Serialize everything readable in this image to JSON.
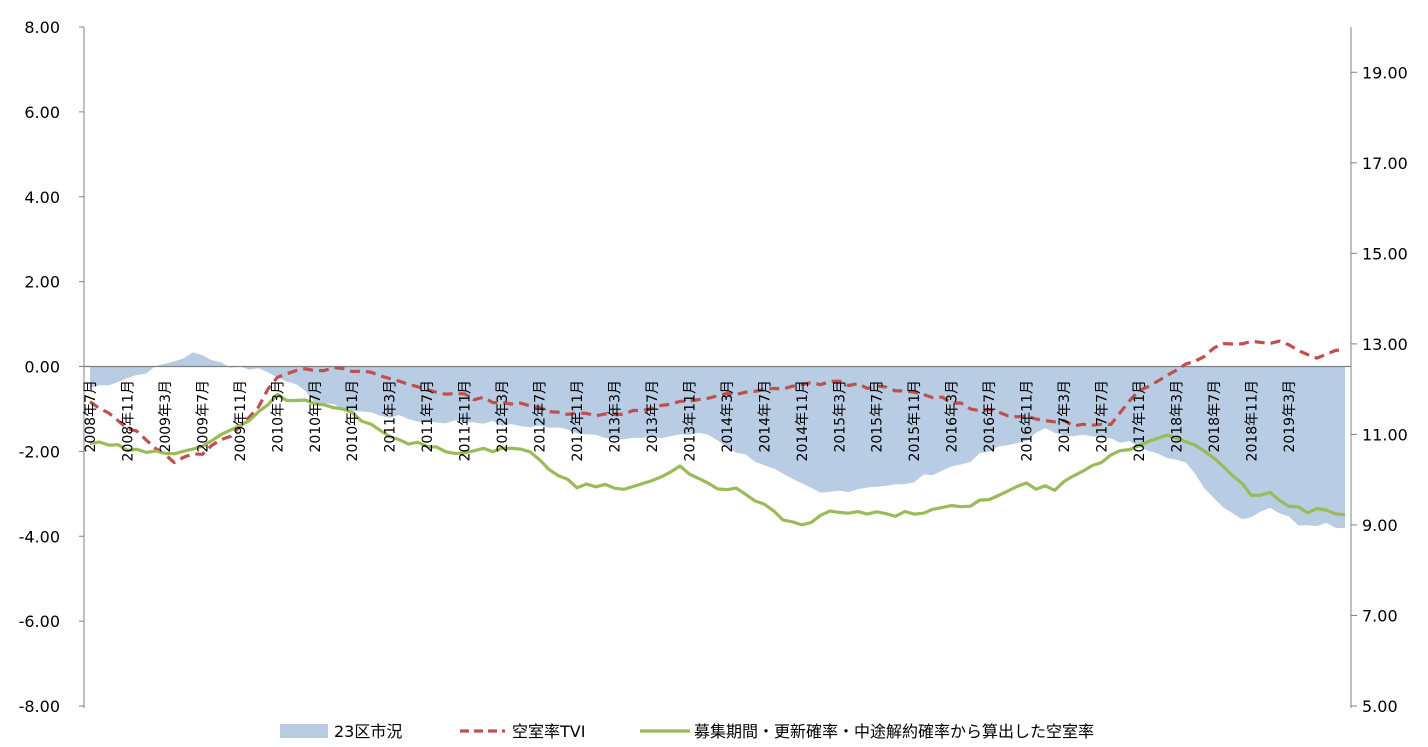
{
  "chart_data": {
    "type": "line",
    "title": "",
    "xlabel": "",
    "ylabel_left": "",
    "ylabel_right": "",
    "y_left_range": [
      -8,
      8
    ],
    "y_left_ticks": [
      "8.00",
      "6.00",
      "4.00",
      "2.00",
      "0.00",
      "-2.00",
      "-4.00",
      "-6.00",
      "-8.00"
    ],
    "y_right_range": [
      5,
      20
    ],
    "y_right_ticks": [
      "19.00",
      "17.00",
      "15.00",
      "13.00",
      "11.00",
      "9.00",
      "7.00",
      "5.00"
    ],
    "x_start": "2008年7月",
    "x_tick_labels": [
      "2008年7月",
      "2008年11月",
      "2009年3月",
      "2009年7月",
      "2009年11月",
      "2010年3月",
      "2010年7月",
      "2010年11月",
      "2011年3月",
      "2011年7月",
      "2011年11月",
      "2012年3月",
      "2012年7月",
      "2012年11月",
      "2013年3月",
      "2013年7月",
      "2013年11月",
      "2014年3月",
      "2014年7月",
      "2014年11月",
      "2015年3月",
      "2015年7月",
      "2015年11月",
      "2016年3月",
      "2016年7月",
      "2016年11月",
      "2017年3月",
      "2017年7月",
      "2017年11月",
      "2018年3月",
      "2018年7月",
      "2018年11月",
      "2019年3月"
    ],
    "grid": false,
    "legend_position": "bottom",
    "series": [
      {
        "name": "23区市況",
        "type": "area",
        "axis": "left",
        "color": "#b8cce4",
        "knots": [
          [
            0,
            -0.5
          ],
          [
            2,
            -0.4
          ],
          [
            5,
            -0.2
          ],
          [
            8,
            0.05
          ],
          [
            11,
            0.3
          ],
          [
            13,
            0.2
          ],
          [
            15,
            0.0
          ],
          [
            18,
            -0.05
          ],
          [
            21,
            -0.3
          ],
          [
            24,
            -0.8
          ],
          [
            27,
            -1.0
          ],
          [
            30,
            -1.1
          ],
          [
            33,
            -1.2
          ],
          [
            36,
            -1.3
          ],
          [
            39,
            -1.3
          ],
          [
            42,
            -1.3
          ],
          [
            45,
            -1.4
          ],
          [
            48,
            -1.4
          ],
          [
            51,
            -1.5
          ],
          [
            54,
            -1.6
          ],
          [
            57,
            -1.7
          ],
          [
            60,
            -1.7
          ],
          [
            63,
            -1.6
          ],
          [
            66,
            -1.6
          ],
          [
            69,
            -2.0
          ],
          [
            72,
            -2.3
          ],
          [
            75,
            -2.7
          ],
          [
            78,
            -3.0
          ],
          [
            81,
            -2.9
          ],
          [
            84,
            -2.8
          ],
          [
            87,
            -2.8
          ],
          [
            90,
            -2.5
          ],
          [
            93,
            -2.3
          ],
          [
            96,
            -2.0
          ],
          [
            99,
            -1.8
          ],
          [
            102,
            -1.5
          ],
          [
            105,
            -1.6
          ],
          [
            108,
            -1.7
          ],
          [
            111,
            -1.8
          ],
          [
            114,
            -2.0
          ],
          [
            117,
            -2.3
          ],
          [
            120,
            -3.1
          ],
          [
            123,
            -3.6
          ],
          [
            126,
            -3.3
          ],
          [
            129,
            -3.7
          ],
          [
            132,
            -3.7
          ],
          [
            134,
            -3.8
          ]
        ]
      },
      {
        "name": "空室率TVI",
        "type": "line",
        "axis": "right",
        "color": "#c0504d",
        "dash": "dashed",
        "knots": [
          [
            0,
            11.7
          ],
          [
            3,
            11.3
          ],
          [
            6,
            10.9
          ],
          [
            9,
            10.4
          ],
          [
            12,
            10.6
          ],
          [
            15,
            11.0
          ],
          [
            18,
            11.6
          ],
          [
            20,
            12.3
          ],
          [
            22,
            12.45
          ],
          [
            25,
            12.45
          ],
          [
            28,
            12.4
          ],
          [
            31,
            12.3
          ],
          [
            34,
            12.1
          ],
          [
            37,
            11.95
          ],
          [
            40,
            11.85
          ],
          [
            43,
            11.75
          ],
          [
            46,
            11.65
          ],
          [
            49,
            11.55
          ],
          [
            52,
            11.45
          ],
          [
            55,
            11.45
          ],
          [
            58,
            11.5
          ],
          [
            61,
            11.6
          ],
          [
            64,
            11.75
          ],
          [
            67,
            11.85
          ],
          [
            70,
            11.9
          ],
          [
            73,
            12.0
          ],
          [
            76,
            12.1
          ],
          [
            79,
            12.15
          ],
          [
            82,
            12.1
          ],
          [
            85,
            12.0
          ],
          [
            88,
            11.9
          ],
          [
            91,
            11.8
          ],
          [
            94,
            11.6
          ],
          [
            97,
            11.5
          ],
          [
            100,
            11.35
          ],
          [
            103,
            11.3
          ],
          [
            106,
            11.2
          ],
          [
            109,
            11.2
          ],
          [
            112,
            11.95
          ],
          [
            115,
            12.35
          ],
          [
            118,
            12.65
          ],
          [
            121,
            13.0
          ],
          [
            124,
            13.05
          ],
          [
            127,
            13.05
          ],
          [
            129,
            12.9
          ],
          [
            131,
            12.7
          ],
          [
            133,
            12.85
          ],
          [
            134,
            12.9
          ]
        ]
      },
      {
        "name": "募集期間・更新確率・中途解約確率から算出した空室率",
        "type": "line",
        "axis": "left",
        "color": "#9bbb59",
        "dash": "solid",
        "knots": [
          [
            0,
            -1.8
          ],
          [
            3,
            -1.9
          ],
          [
            6,
            -2.05
          ],
          [
            9,
            -2.0
          ],
          [
            12,
            -1.85
          ],
          [
            15,
            -1.55
          ],
          [
            18,
            -1.05
          ],
          [
            20,
            -0.7
          ],
          [
            22,
            -0.8
          ],
          [
            25,
            -0.9
          ],
          [
            28,
            -1.1
          ],
          [
            31,
            -1.5
          ],
          [
            34,
            -1.8
          ],
          [
            37,
            -1.9
          ],
          [
            40,
            -2.05
          ],
          [
            43,
            -1.95
          ],
          [
            46,
            -1.9
          ],
          [
            49,
            -2.4
          ],
          [
            52,
            -2.8
          ],
          [
            55,
            -2.8
          ],
          [
            58,
            -2.85
          ],
          [
            61,
            -2.6
          ],
          [
            63,
            -2.4
          ],
          [
            66,
            -2.8
          ],
          [
            69,
            -2.9
          ],
          [
            72,
            -3.3
          ],
          [
            75,
            -3.7
          ],
          [
            76,
            -3.75
          ],
          [
            79,
            -3.45
          ],
          [
            82,
            -3.45
          ],
          [
            85,
            -3.5
          ],
          [
            88,
            -3.45
          ],
          [
            91,
            -3.35
          ],
          [
            94,
            -3.3
          ],
          [
            97,
            -3.0
          ],
          [
            100,
            -2.8
          ],
          [
            103,
            -2.9
          ],
          [
            106,
            -2.5
          ],
          [
            109,
            -2.1
          ],
          [
            112,
            -1.85
          ],
          [
            115,
            -1.6
          ],
          [
            118,
            -1.8
          ],
          [
            121,
            -2.4
          ],
          [
            124,
            -3.0
          ],
          [
            126,
            -3.0
          ],
          [
            128,
            -3.3
          ],
          [
            130,
            -3.4
          ],
          [
            132,
            -3.4
          ],
          [
            134,
            -3.55
          ]
        ]
      }
    ]
  }
}
